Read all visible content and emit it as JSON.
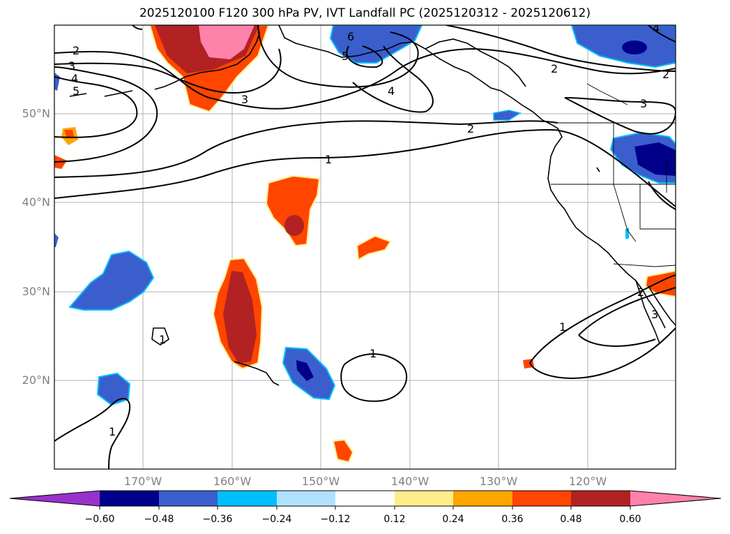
{
  "title": "2025120100 F120 300 hPa PV, IVT Landfall PC (2025120312 - 2025120612)",
  "lat_labels": [
    "50°N",
    "40°N",
    "30°N",
    "20°N"
  ],
  "lon_labels": [
    "170°W",
    "160°W",
    "150°W",
    "140°W",
    "130°W",
    "120°W"
  ],
  "contour_labels": [
    "1",
    "2",
    "3",
    "4",
    "5",
    "6"
  ],
  "colorbar": {
    "ticks": [
      "−0.60",
      "−0.48",
      "−0.36",
      "−0.24",
      "−0.12",
      "0.12",
      "0.24",
      "0.36",
      "0.48",
      "0.60"
    ],
    "colors": [
      "#9932cc",
      "#00008b",
      "#3a5fcd",
      "#00bfff",
      "#b0e2ff",
      "#ffffff",
      "#ffec8b",
      "#ffa500",
      "#ff4500",
      "#b22222",
      "#ff82ab"
    ]
  }
}
